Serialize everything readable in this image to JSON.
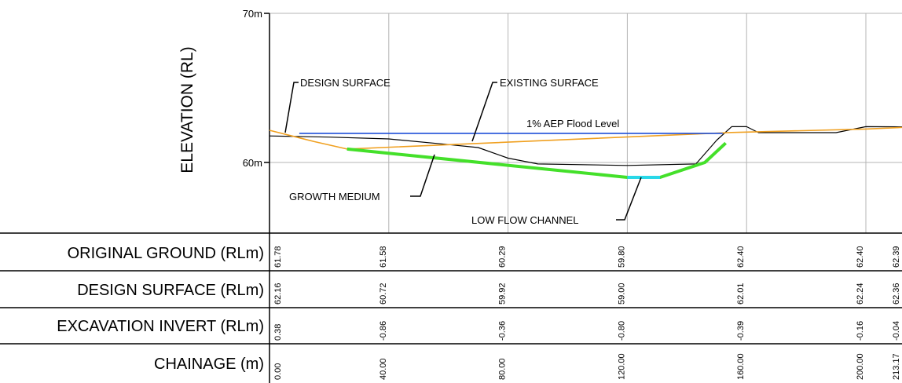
{
  "axis": {
    "y_title": "ELEVATION (RL)",
    "y_ticks": [
      {
        "label": "70m",
        "value": 70
      },
      {
        "label": "60m",
        "value": 60
      }
    ]
  },
  "annotations": {
    "design_surface": "DESIGN SURFACE",
    "existing_surface": "EXISTING SURFACE",
    "flood_level": "1% AEP Flood Level",
    "growth_medium": "GROWTH MEDIUM",
    "low_flow_channel": "LOW FLOW CHANNEL"
  },
  "colors": {
    "existing_surface": "#000000",
    "design_surface": "#f0a020",
    "flood_level": "#1f4fd8",
    "growth_medium": "#44e02a",
    "low_flow_channel": "#29d8e8",
    "grid": "#b4b4b4"
  },
  "chart_data": {
    "type": "line",
    "x_unit": "m",
    "y_unit": "m",
    "ylim": [
      55,
      70
    ],
    "xlim": [
      0,
      213.17
    ],
    "grid": true,
    "series": [
      {
        "name": "EXISTING SURFACE",
        "points": [
          [
            0,
            61.78
          ],
          [
            20,
            61.7
          ],
          [
            40,
            61.58
          ],
          [
            60,
            61.2
          ],
          [
            70,
            61.0
          ],
          [
            80,
            60.29
          ],
          [
            90,
            59.9
          ],
          [
            120,
            59.8
          ],
          [
            143,
            59.9
          ],
          [
            150,
            61.5
          ],
          [
            155,
            62.4
          ],
          [
            160,
            62.4
          ],
          [
            164,
            62.0
          ],
          [
            172,
            62.0
          ],
          [
            190,
            62.0
          ],
          [
            200,
            62.4
          ],
          [
            213.17,
            62.39
          ]
        ]
      },
      {
        "name": "DESIGN SURFACE",
        "points": [
          [
            0,
            62.16
          ],
          [
            15,
            61.4
          ],
          [
            26,
            60.9
          ],
          [
            155,
            62.01
          ],
          [
            200,
            62.24
          ],
          [
            213.17,
            62.36
          ]
        ]
      },
      {
        "name": "GROWTH MEDIUM",
        "points": [
          [
            26,
            60.9
          ],
          [
            120,
            59.0
          ],
          [
            131,
            59.0
          ],
          [
            146,
            60.0
          ],
          [
            153,
            61.3
          ]
        ]
      },
      {
        "name": "LOW FLOW CHANNEL",
        "points": [
          [
            120,
            59.0
          ],
          [
            131,
            59.0
          ]
        ]
      },
      {
        "name": "1% AEP Flood Level",
        "points": [
          [
            10,
            61.95
          ],
          [
            152,
            61.95
          ]
        ]
      }
    ]
  },
  "table": {
    "rows": [
      {
        "label": "ORIGINAL GROUND (RLm)",
        "values": [
          {
            "x": 0,
            "text": "61.78"
          },
          {
            "x": 40,
            "text": "61.58"
          },
          {
            "x": 80,
            "text": "60.29"
          },
          {
            "x": 120,
            "text": "59.80"
          },
          {
            "x": 160,
            "text": "62.40"
          },
          {
            "x": 200,
            "text": "62.40"
          },
          {
            "x": 213.17,
            "text": "62.39"
          }
        ]
      },
      {
        "label": "DESIGN SURFACE (RLm)",
        "values": [
          {
            "x": 0,
            "text": "62.16"
          },
          {
            "x": 40,
            "text": "60.72"
          },
          {
            "x": 80,
            "text": "59.92"
          },
          {
            "x": 120,
            "text": "59.00"
          },
          {
            "x": 160,
            "text": "62.01"
          },
          {
            "x": 200,
            "text": "62.24"
          },
          {
            "x": 213.17,
            "text": "62.36"
          }
        ]
      },
      {
        "label": "EXCAVATION INVERT (RLm)",
        "values": [
          {
            "x": 0,
            "text": "0.38"
          },
          {
            "x": 40,
            "text": "-0.86"
          },
          {
            "x": 80,
            "text": "-0.36"
          },
          {
            "x": 120,
            "text": "-0.80"
          },
          {
            "x": 160,
            "text": "-0.39"
          },
          {
            "x": 200,
            "text": "-0.16"
          },
          {
            "x": 213.17,
            "text": "-0.04"
          }
        ]
      },
      {
        "label": "CHAINAGE (m)",
        "values": [
          {
            "x": 0,
            "text": "0.00"
          },
          {
            "x": 40,
            "text": "40.00"
          },
          {
            "x": 80,
            "text": "80.00"
          },
          {
            "x": 120,
            "text": "120.00"
          },
          {
            "x": 160,
            "text": "160.00"
          },
          {
            "x": 200,
            "text": "200.00"
          },
          {
            "x": 213.17,
            "text": "213.17"
          }
        ]
      }
    ]
  }
}
